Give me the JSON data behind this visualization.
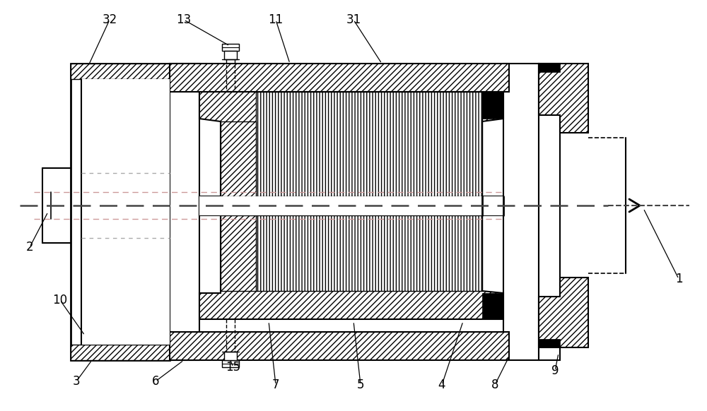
{
  "bg_color": "#ffffff",
  "line_color": "#000000",
  "labels": [
    [
      "32",
      155,
      28,
      125,
      93
    ],
    [
      "13",
      260,
      28,
      325,
      65
    ],
    [
      "11",
      390,
      28,
      410,
      90
    ],
    [
      "31",
      500,
      28,
      540,
      90
    ],
    [
      "2",
      42,
      350,
      68,
      300
    ],
    [
      "10",
      85,
      425,
      120,
      475
    ],
    [
      "3",
      108,
      540,
      130,
      510
    ],
    [
      "6",
      220,
      540,
      260,
      510
    ],
    [
      "15",
      330,
      520,
      325,
      508
    ],
    [
      "7",
      390,
      545,
      380,
      455
    ],
    [
      "5",
      510,
      545,
      500,
      455
    ],
    [
      "4",
      625,
      545,
      655,
      455
    ],
    [
      "8",
      700,
      545,
      720,
      505
    ],
    [
      "9",
      785,
      525,
      790,
      500
    ],
    [
      "1",
      960,
      395,
      910,
      295
    ]
  ]
}
